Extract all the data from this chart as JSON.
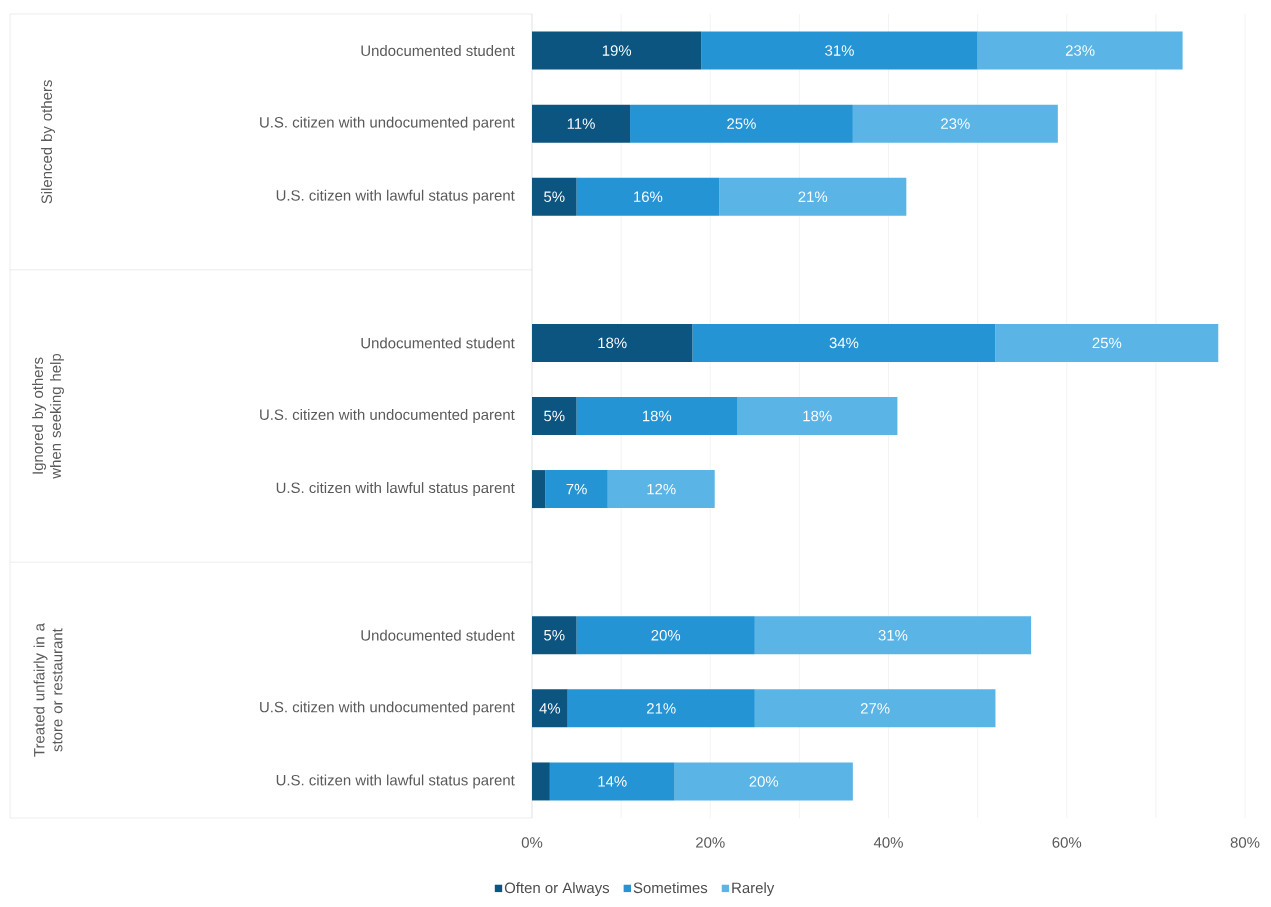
{
  "chart_data": {
    "type": "bar",
    "orientation": "horizontal",
    "stacked": true,
    "categories": [
      "Undocumented student",
      "U.S. citizen with undocumented parent",
      "U.S. citizen with lawful status parent",
      null,
      "Undocumented student",
      "U.S. citizen with undocumented parent",
      "U.S. citizen with lawful status parent",
      null,
      "Undocumented student",
      "U.S. citizen with undocumented parent",
      "U.S. citizen with lawful status parent"
    ],
    "series": [
      {
        "name": "Often or Always",
        "color": "#0b5580",
        "values": [
          19,
          11,
          5,
          null,
          18,
          5,
          1.5,
          null,
          5,
          4,
          2
        ],
        "value_labels": [
          "19%",
          "11%",
          "5%",
          null,
          "18%",
          "5%",
          null,
          null,
          "5%",
          "4%",
          null
        ]
      },
      {
        "name": "Sometimes",
        "color": "#2494d4",
        "values": [
          31,
          25,
          16,
          null,
          34,
          18,
          7,
          null,
          20,
          21,
          14
        ],
        "value_labels": [
          "31%",
          "25%",
          "16%",
          null,
          "34%",
          "18%",
          "7%",
          null,
          "20%",
          "21%",
          "14%"
        ]
      },
      {
        "name": "Rarely",
        "color": "#5ab4e5",
        "values": [
          23,
          23,
          21,
          null,
          25,
          18,
          12,
          null,
          31,
          27,
          20
        ],
        "value_labels": [
          "23%",
          "23%",
          "21%",
          null,
          "25%",
          "18%",
          "12%",
          null,
          "31%",
          "27%",
          "20%"
        ]
      }
    ],
    "xlim": [
      0,
      80
    ],
    "xticks": [
      {
        "value": 0,
        "label": "0%"
      },
      {
        "value": 10,
        "label": null
      },
      {
        "value": 20,
        "label": "20%"
      },
      {
        "value": 30,
        "label": null
      },
      {
        "value": 40,
        "label": "40%"
      },
      {
        "value": 50,
        "label": null
      },
      {
        "value": 60,
        "label": "60%"
      },
      {
        "value": 70,
        "label": null
      },
      {
        "value": 80,
        "label": "80%"
      }
    ],
    "grid": "x",
    "legend": "bottom",
    "annotations": [
      "Silenced by others",
      "Ignored by others when seeking help",
      "Treated unfairly in a store or restaurant"
    ]
  }
}
